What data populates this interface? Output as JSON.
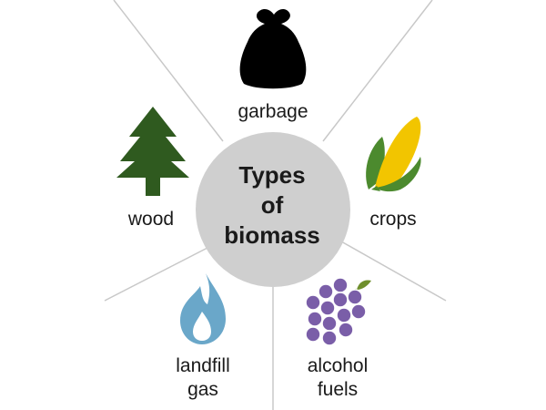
{
  "center": {
    "line1": "Types",
    "line2": "of",
    "line3": "biomass"
  },
  "items": [
    {
      "id": "garbage",
      "label": "garbage",
      "icon": "garbage-bag-icon",
      "color": "#000000"
    },
    {
      "id": "crops",
      "label": "crops",
      "icon": "corn-icon",
      "color": "#f2c500"
    },
    {
      "id": "alcohol-fuels",
      "label_line1": "alcohol",
      "label_line2": "fuels",
      "icon": "grapes-icon",
      "color": "#7a5ea8"
    },
    {
      "id": "landfill-gas",
      "label_line1": "landfill",
      "label_line2": "gas",
      "icon": "gas-flame-icon",
      "color": "#6aa7c9"
    },
    {
      "id": "wood",
      "label": "wood",
      "icon": "pine-tree-icon",
      "color": "#2f5a1f"
    }
  ],
  "colors": {
    "center_circle": "#cfcfcf",
    "spoke_lines": "#c8c8c8",
    "corn_husk": "#4c8a2e"
  }
}
